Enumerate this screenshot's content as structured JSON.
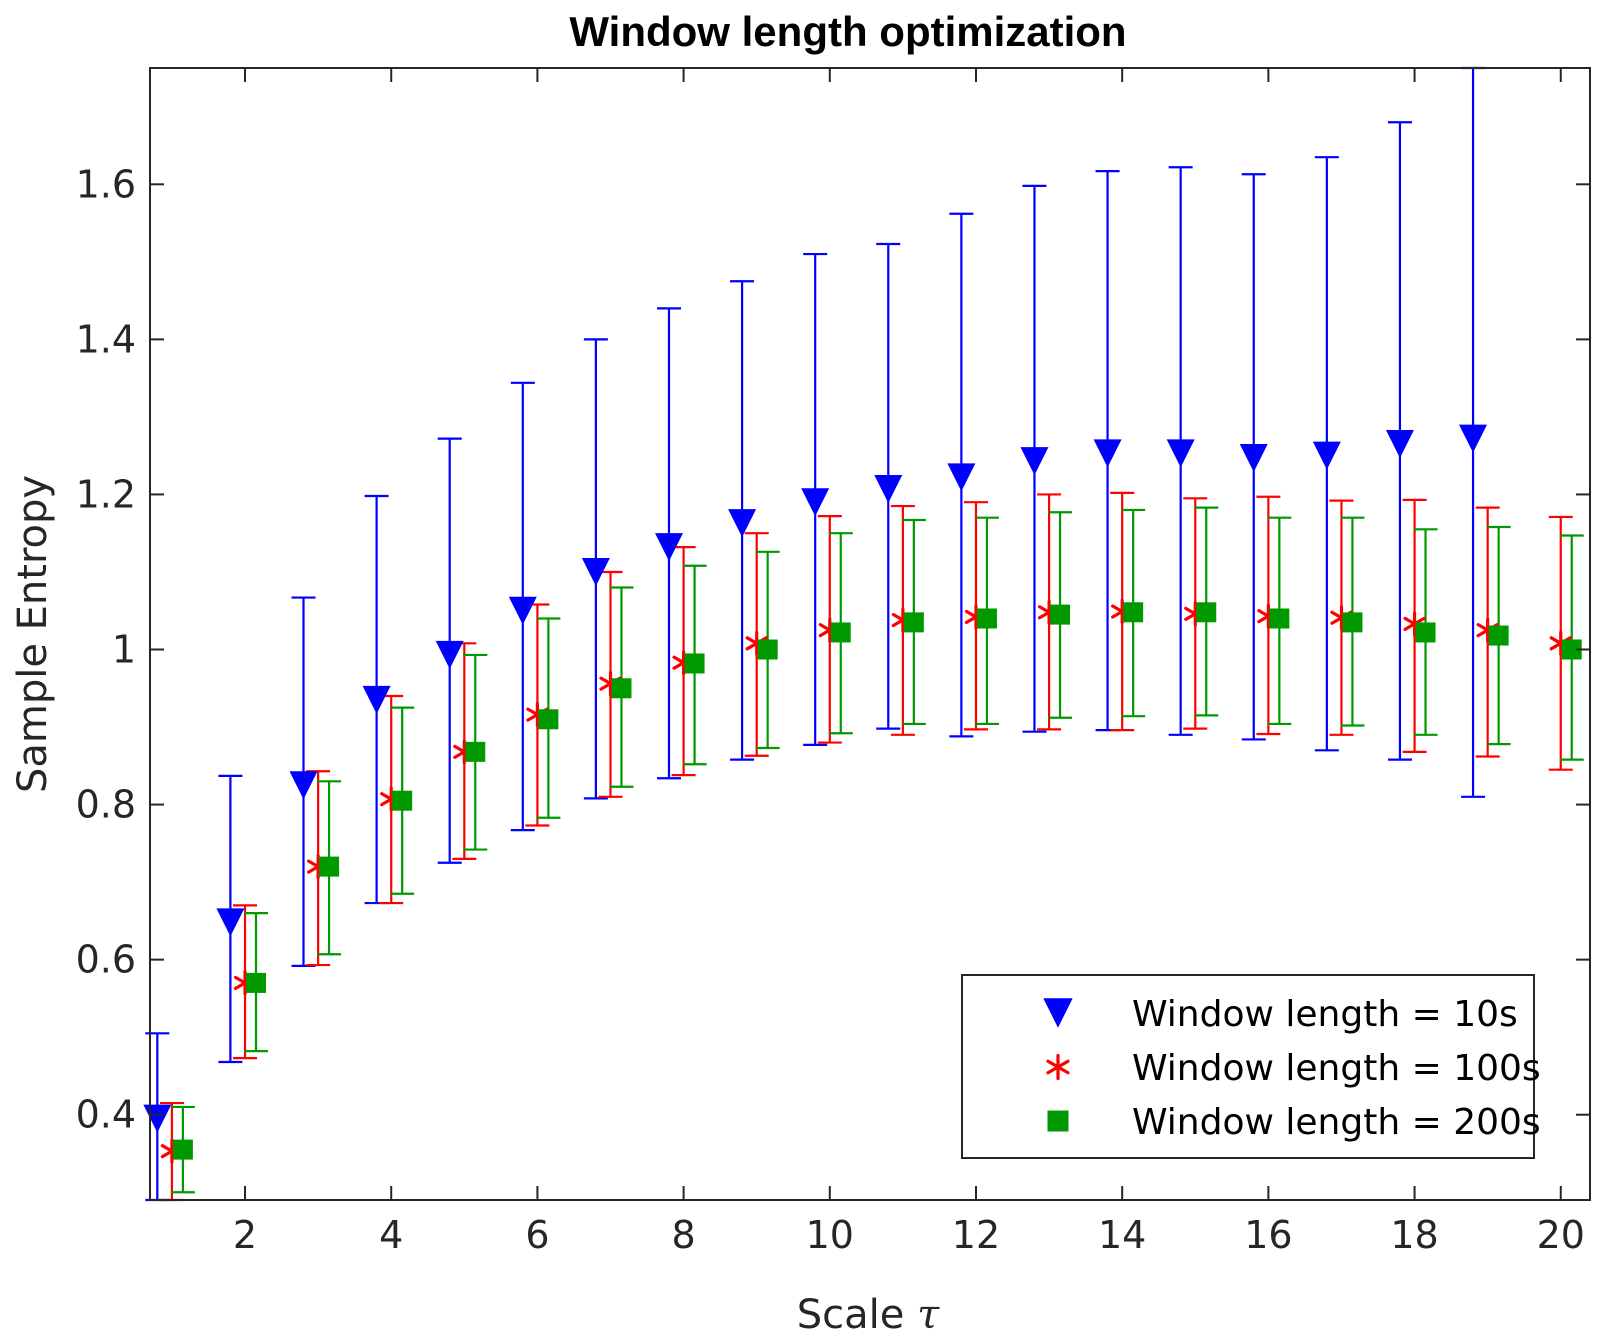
{
  "chart_data": {
    "type": "errorbar",
    "title": "Window length optimization",
    "xlabel": "Scale",
    "xlabel_symbol": "τ",
    "ylabel": "Sample Entropy",
    "xlim": [
      0.7,
      20.4
    ],
    "ylim": [
      0.29,
      1.75
    ],
    "xticks": [
      2,
      4,
      6,
      8,
      10,
      12,
      14,
      16,
      18,
      20
    ],
    "yticks": [
      0.4,
      0.6,
      0.8,
      1,
      1.2,
      1.4,
      1.6
    ],
    "ytick_labels": [
      "0.4",
      "0.6",
      "0.8",
      "1",
      "1.2",
      "1.4",
      "1.6"
    ],
    "legend_position": "bottom-right",
    "series": [
      {
        "name": "Window length = 10s",
        "color": "#0000ff",
        "marker": "triangle-down",
        "offset": -0.2,
        "x": [
          1,
          2,
          3,
          4,
          5,
          6,
          7,
          8,
          9,
          10,
          11,
          12,
          13,
          14,
          15,
          16,
          17,
          18,
          19
        ],
        "y": [
          0.395,
          0.648,
          0.825,
          0.935,
          0.993,
          1.05,
          1.1,
          1.132,
          1.163,
          1.19,
          1.207,
          1.222,
          1.243,
          1.253,
          1.253,
          1.247,
          1.25,
          1.265,
          1.272
        ],
        "lower": [
          0.29,
          0.468,
          0.592,
          0.673,
          0.725,
          0.767,
          0.808,
          0.834,
          0.858,
          0.877,
          0.898,
          0.888,
          0.894,
          0.896,
          0.89,
          0.884,
          0.87,
          0.858,
          0.81
        ],
        "upper": [
          0.505,
          0.837,
          1.067,
          1.198,
          1.272,
          1.344,
          1.4,
          1.44,
          1.475,
          1.51,
          1.523,
          1.562,
          1.598,
          1.617,
          1.622,
          1.613,
          1.635,
          1.68,
          1.75
        ]
      },
      {
        "name": "Window length = 100s",
        "color": "#ff0000",
        "marker": "asterisk",
        "offset": 0,
        "x": [
          1,
          2,
          3,
          4,
          5,
          6,
          7,
          8,
          9,
          10,
          11,
          12,
          13,
          14,
          15,
          16,
          17,
          18,
          19,
          20
        ],
        "y": [
          0.353,
          0.57,
          0.72,
          0.807,
          0.868,
          0.916,
          0.956,
          0.983,
          1.008,
          1.025,
          1.038,
          1.042,
          1.048,
          1.049,
          1.046,
          1.043,
          1.041,
          1.033,
          1.025,
          1.008
        ],
        "lower": [
          0.29,
          0.473,
          0.593,
          0.673,
          0.73,
          0.773,
          0.81,
          0.838,
          0.863,
          0.88,
          0.89,
          0.897,
          0.897,
          0.896,
          0.898,
          0.891,
          0.89,
          0.868,
          0.862,
          0.845
        ],
        "upper": [
          0.415,
          0.67,
          0.843,
          0.94,
          1.008,
          1.058,
          1.1,
          1.132,
          1.15,
          1.172,
          1.185,
          1.19,
          1.2,
          1.202,
          1.195,
          1.197,
          1.192,
          1.193,
          1.183,
          1.171
        ]
      },
      {
        "name": "Window length = 200s",
        "color": "#009900",
        "marker": "square",
        "offset": 0.15,
        "x": [
          1,
          2,
          3,
          4,
          5,
          6,
          7,
          8,
          9,
          10,
          11,
          12,
          13,
          14,
          15,
          16,
          17,
          18,
          19,
          20
        ],
        "y": [
          0.355,
          0.57,
          0.72,
          0.805,
          0.868,
          0.91,
          0.95,
          0.982,
          1.0,
          1.022,
          1.035,
          1.04,
          1.045,
          1.048,
          1.048,
          1.04,
          1.035,
          1.022,
          1.018,
          1.0
        ],
        "lower": [
          0.3,
          0.482,
          0.607,
          0.685,
          0.742,
          0.783,
          0.823,
          0.852,
          0.873,
          0.892,
          0.904,
          0.904,
          0.912,
          0.914,
          0.915,
          0.904,
          0.902,
          0.89,
          0.878,
          0.858
        ],
        "upper": [
          0.41,
          0.66,
          0.83,
          0.925,
          0.993,
          1.04,
          1.08,
          1.108,
          1.126,
          1.15,
          1.167,
          1.17,
          1.177,
          1.18,
          1.183,
          1.17,
          1.17,
          1.155,
          1.158,
          1.147
        ]
      }
    ]
  }
}
